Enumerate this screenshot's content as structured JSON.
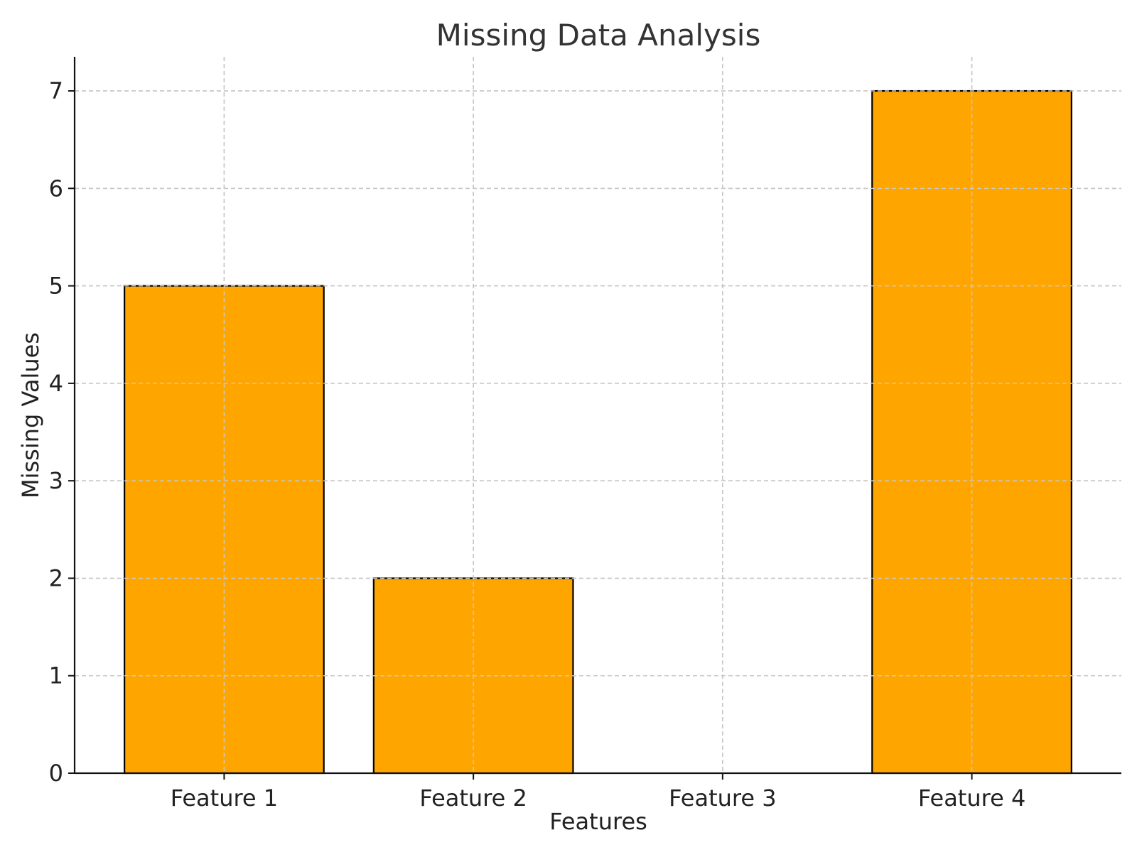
{
  "chart_data": {
    "type": "bar",
    "title": "Missing Data Analysis",
    "xlabel": "Features",
    "ylabel": "Missing Values",
    "categories": [
      "Feature 1",
      "Feature 2",
      "Feature 3",
      "Feature 4"
    ],
    "values": [
      5,
      2,
      0,
      7
    ],
    "ylim": [
      0,
      7.35
    ],
    "yticks": [
      0,
      1,
      2,
      3,
      4,
      5,
      6,
      7
    ],
    "grid": true,
    "bar_color": "#FFA500",
    "edge_color": "#000000"
  }
}
